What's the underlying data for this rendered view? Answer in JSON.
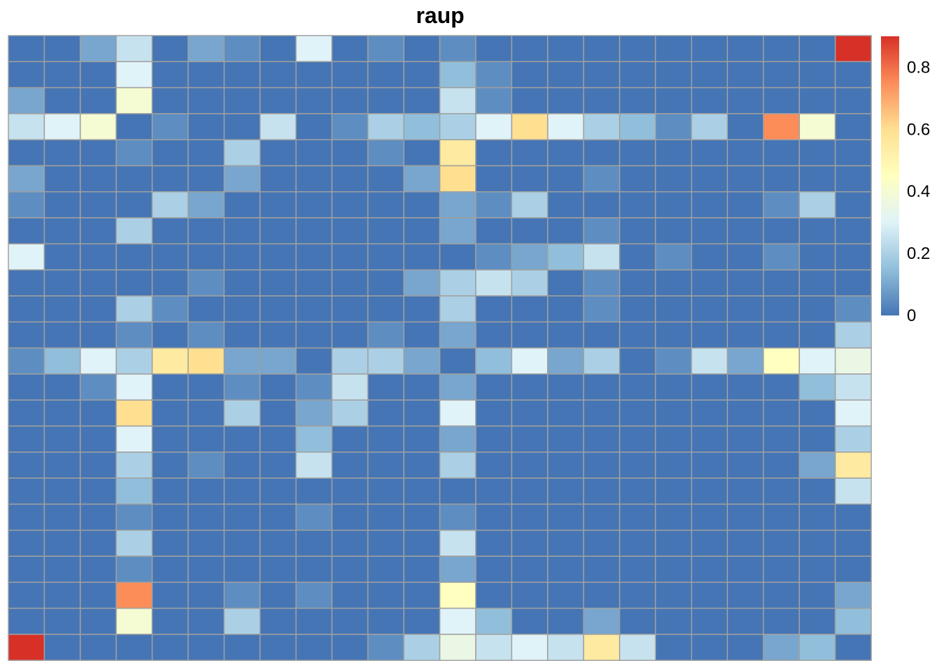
{
  "chart_data": {
    "type": "heatmap",
    "title": "raup",
    "xlabel": "",
    "ylabel": "",
    "legend": "right",
    "colorbar": {
      "min": 0,
      "max": 0.9,
      "ticks": [
        0,
        0.2,
        0.4,
        0.6,
        0.8
      ],
      "tick_labels": [
        "0",
        "0.2",
        "0.4",
        "0.6",
        "0.8"
      ]
    },
    "colors": [
      "#4575b4",
      "#91bfdb",
      "#e0f3f8",
      "#ffffbf",
      "#fee090",
      "#fc8d59",
      "#d73027"
    ],
    "rows": 24,
    "cols": 24,
    "values": [
      [
        0,
        0,
        0.1,
        0.25,
        0,
        0.1,
        0.05,
        0,
        0.3,
        0,
        0.05,
        0,
        0.05,
        0,
        0,
        0,
        0,
        0,
        0,
        0,
        0,
        0,
        0,
        0.9
      ],
      [
        0,
        0,
        0,
        0.3,
        0,
        0,
        0,
        0,
        0,
        0,
        0,
        0,
        0.15,
        0.05,
        0,
        0,
        0,
        0,
        0,
        0,
        0,
        0,
        0,
        0
      ],
      [
        0.1,
        0,
        0,
        0.4,
        0,
        0,
        0,
        0,
        0,
        0,
        0,
        0,
        0.25,
        0.05,
        0,
        0,
        0,
        0,
        0,
        0,
        0,
        0,
        0,
        0
      ],
      [
        0.25,
        0.3,
        0.4,
        0,
        0.05,
        0,
        0,
        0.25,
        0,
        0.05,
        0.2,
        0.15,
        0.2,
        0.3,
        0.6,
        0.3,
        0.2,
        0.15,
        0.05,
        0.2,
        0,
        0.75,
        0.4,
        0
      ],
      [
        0,
        0,
        0,
        0.05,
        0,
        0,
        0.2,
        0,
        0,
        0,
        0.05,
        0,
        0.55,
        0,
        0,
        0,
        0,
        0,
        0,
        0,
        0,
        0,
        0,
        0
      ],
      [
        0.1,
        0,
        0,
        0,
        0,
        0,
        0.1,
        0,
        0,
        0,
        0,
        0.1,
        0.6,
        0,
        0,
        0,
        0.05,
        0,
        0,
        0,
        0,
        0,
        0,
        0
      ],
      [
        0.05,
        0,
        0,
        0,
        0.2,
        0.1,
        0,
        0,
        0,
        0,
        0,
        0,
        0.1,
        0.05,
        0.2,
        0,
        0,
        0,
        0,
        0,
        0,
        0.05,
        0.2,
        0
      ],
      [
        0,
        0,
        0,
        0.2,
        0,
        0,
        0,
        0,
        0,
        0,
        0,
        0,
        0.1,
        0,
        0,
        0,
        0.05,
        0,
        0,
        0,
        0,
        0,
        0,
        0
      ],
      [
        0.3,
        0,
        0,
        0,
        0,
        0,
        0,
        0,
        0,
        0,
        0,
        0,
        0,
        0.05,
        0.1,
        0.15,
        0.25,
        0,
        0.05,
        0,
        0,
        0.05,
        0,
        0
      ],
      [
        0,
        0,
        0,
        0,
        0,
        0.05,
        0,
        0,
        0,
        0,
        0,
        0.1,
        0.2,
        0.25,
        0.2,
        0,
        0.05,
        0,
        0,
        0,
        0,
        0,
        0,
        0
      ],
      [
        0,
        0,
        0,
        0.2,
        0.05,
        0,
        0,
        0,
        0,
        0,
        0,
        0,
        0.2,
        0,
        0,
        0,
        0.05,
        0,
        0,
        0,
        0,
        0,
        0,
        0.05
      ],
      [
        0,
        0,
        0,
        0.05,
        0,
        0.05,
        0,
        0,
        0,
        0,
        0.05,
        0,
        0.1,
        0,
        0,
        0,
        0,
        0,
        0,
        0,
        0,
        0,
        0,
        0.2
      ],
      [
        0.05,
        0.15,
        0.3,
        0.2,
        0.55,
        0.6,
        0.1,
        0.1,
        0,
        0.2,
        0.2,
        0.1,
        0,
        0.15,
        0.3,
        0.1,
        0.2,
        0,
        0.05,
        0.25,
        0.1,
        0.45,
        0.3,
        0.35
      ],
      [
        0,
        0,
        0.05,
        0.3,
        0,
        0,
        0.05,
        0,
        0.05,
        0.25,
        0,
        0,
        0.1,
        0,
        0,
        0,
        0,
        0,
        0,
        0,
        0,
        0,
        0.15,
        0.25
      ],
      [
        0,
        0,
        0,
        0.6,
        0,
        0,
        0.2,
        0,
        0.1,
        0.2,
        0,
        0,
        0.3,
        0,
        0,
        0,
        0,
        0,
        0,
        0,
        0,
        0,
        0,
        0.3
      ],
      [
        0,
        0,
        0,
        0.3,
        0,
        0,
        0,
        0,
        0.15,
        0,
        0,
        0,
        0.1,
        0,
        0,
        0,
        0,
        0,
        0,
        0,
        0,
        0,
        0,
        0.2
      ],
      [
        0,
        0,
        0,
        0.2,
        0,
        0.05,
        0,
        0,
        0.25,
        0,
        0,
        0,
        0.2,
        0,
        0,
        0,
        0,
        0,
        0,
        0,
        0,
        0,
        0.1,
        0.55
      ],
      [
        0,
        0,
        0,
        0.15,
        0,
        0,
        0,
        0,
        0,
        0,
        0,
        0,
        0,
        0,
        0,
        0,
        0,
        0,
        0,
        0,
        0,
        0,
        0,
        0.25
      ],
      [
        0,
        0,
        0,
        0.05,
        0,
        0,
        0,
        0,
        0.05,
        0,
        0,
        0,
        0.05,
        0,
        0,
        0,
        0,
        0,
        0,
        0,
        0,
        0,
        0,
        0
      ],
      [
        0,
        0,
        0,
        0.2,
        0,
        0,
        0,
        0,
        0,
        0,
        0,
        0,
        0.25,
        0,
        0,
        0,
        0,
        0,
        0,
        0,
        0,
        0,
        0,
        0
      ],
      [
        0,
        0,
        0,
        0.05,
        0,
        0,
        0,
        0,
        0,
        0,
        0,
        0,
        0.1,
        0,
        0,
        0,
        0,
        0,
        0,
        0,
        0,
        0,
        0,
        0
      ],
      [
        0,
        0,
        0,
        0.75,
        0,
        0,
        0.05,
        0,
        0.05,
        0,
        0,
        0,
        0.45,
        0,
        0,
        0,
        0,
        0,
        0,
        0,
        0,
        0,
        0,
        0.1
      ],
      [
        0,
        0,
        0,
        0.4,
        0,
        0,
        0.2,
        0,
        0,
        0,
        0,
        0,
        0.3,
        0.15,
        0,
        0,
        0.1,
        0,
        0,
        0,
        0,
        0,
        0,
        0.15
      ],
      [
        0.9,
        0,
        0,
        0,
        0,
        0,
        0,
        0,
        0,
        0,
        0.05,
        0.2,
        0.35,
        0.25,
        0.3,
        0.25,
        0.55,
        0.25,
        0,
        0,
        0,
        0.1,
        0.15,
        0
      ]
    ]
  }
}
